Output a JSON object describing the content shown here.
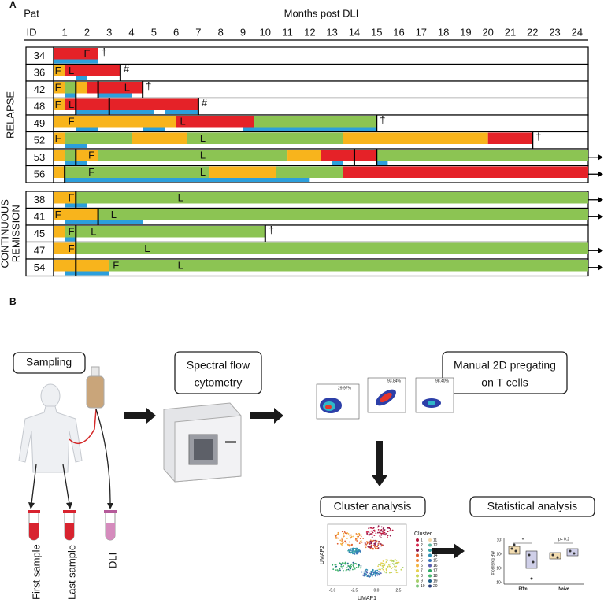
{
  "panel_a": {
    "label": "A",
    "pat": "Pat",
    "id": "ID",
    "axis_title": "Months post DLI",
    "xlim": [
      0.5,
      24.5
    ],
    "xticks": [
      1,
      2,
      3,
      4,
      5,
      6,
      7,
      8,
      9,
      10,
      11,
      12,
      13,
      14,
      15,
      16,
      17,
      18,
      19,
      20,
      21,
      22,
      23,
      24
    ],
    "colors": {
      "orange": "#f8b41c",
      "green": "#8cc453",
      "red": "#e52228"
    },
    "sample_color": "#2c9fdc",
    "groups": [
      {
        "name": [
          "RELAPSE"
        ],
        "rows": [
          {
            "id": "34",
            "segments": [
              [
                0.5,
                2.5,
                "red"
              ]
            ],
            "samples": [
              [
                0.5,
                2.5
              ]
            ],
            "lines": [],
            "labels": [
              {
                "text": "F",
                "at": 2
              }
            ],
            "end": "†"
          },
          {
            "id": "36",
            "segments": [
              [
                0.5,
                1,
                "orange"
              ],
              [
                1,
                3.5,
                "red"
              ]
            ],
            "samples": [
              [
                1.5,
                2
              ]
            ],
            "lines": [
              3.5
            ],
            "labels": [
              {
                "text": "F",
                "at": 0.7
              },
              {
                "text": "L",
                "at": 1.3
              }
            ],
            "end": "#"
          },
          {
            "id": "42",
            "segments": [
              [
                0.5,
                1,
                "orange"
              ],
              [
                1,
                1.5,
                "green"
              ],
              [
                1.5,
                2,
                "orange"
              ],
              [
                2,
                4.5,
                "red"
              ]
            ],
            "samples": [
              [
                1,
                1.5
              ],
              [
                2.5,
                4
              ]
            ],
            "lines": [
              1.5,
              2.5,
              4.5
            ],
            "labels": [
              {
                "text": "F",
                "at": 0.7
              },
              {
                "text": "L",
                "at": 3.8
              }
            ],
            "end": "†"
          },
          {
            "id": "48",
            "segments": [
              [
                0.5,
                1,
                "orange"
              ],
              [
                1,
                7,
                "red"
              ]
            ],
            "samples": [
              [
                1.5,
                5
              ],
              [
                5.5,
                7
              ]
            ],
            "lines": [
              1.5,
              3,
              7
            ],
            "labels": [
              {
                "text": "F",
                "at": 0.7
              },
              {
                "text": "L",
                "at": 1.3
              }
            ],
            "end": "#"
          },
          {
            "id": "49",
            "segments": [
              [
                0.5,
                6,
                "orange"
              ],
              [
                6,
                9.5,
                "red"
              ],
              [
                9.5,
                15,
                "green"
              ]
            ],
            "samples": [
              [
                1.5,
                2.5
              ],
              [
                4.5,
                5.5
              ],
              [
                9,
                15
              ]
            ],
            "lines": [
              15
            ],
            "labels": [
              {
                "text": "F",
                "at": 1.3
              },
              {
                "text": "L",
                "at": 6.3
              }
            ],
            "end": "†"
          },
          {
            "id": "52",
            "segments": [
              [
                0.5,
                1,
                "orange"
              ],
              [
                1,
                4,
                "green"
              ],
              [
                4,
                6.5,
                "orange"
              ],
              [
                6.5,
                13.5,
                "green"
              ],
              [
                13.5,
                20,
                "orange"
              ],
              [
                20,
                22,
                "red"
              ]
            ],
            "samples": [
              [
                1,
                2
              ]
            ],
            "lines": [
              22
            ],
            "labels": [
              {
                "text": "F",
                "at": 0.7
              },
              {
                "text": "L",
                "at": 7.2
              }
            ],
            "end": "†"
          },
          {
            "id": "53",
            "segments": [
              [
                0.5,
                1,
                "orange"
              ],
              [
                1,
                1.5,
                "green"
              ],
              [
                1.5,
                2.5,
                "orange"
              ],
              [
                2.5,
                11,
                "green"
              ],
              [
                11,
                12.5,
                "orange"
              ],
              [
                12.5,
                15,
                "red"
              ],
              [
                15,
                24.5,
                "green"
              ]
            ],
            "samples": [
              [
                1,
                2
              ],
              [
                13,
                13.5
              ],
              [
                15,
                15.5
              ]
            ],
            "lines": [
              1.5,
              14,
              15
            ],
            "labels": [
              {
                "text": "F",
                "at": 2.2
              },
              {
                "text": "L",
                "at": 7.2
              }
            ],
            "arrow": true
          },
          {
            "id": "56",
            "segments": [
              [
                0.5,
                1,
                "orange"
              ],
              [
                1,
                7.5,
                "green"
              ],
              [
                7.5,
                10.5,
                "orange"
              ],
              [
                10.5,
                13.5,
                "green"
              ],
              [
                13.5,
                24.5,
                "red"
              ]
            ],
            "samples": [
              [
                1,
                12
              ]
            ],
            "lines": [
              1
            ],
            "labels": [
              {
                "text": "F",
                "at": 2.2
              },
              {
                "text": "L",
                "at": 7.2
              }
            ],
            "arrow": true
          }
        ]
      },
      {
        "name": [
          "CONTINUOUS",
          "REMISSION"
        ],
        "rows": [
          {
            "id": "38",
            "segments": [
              [
                0.5,
                1.5,
                "orange"
              ],
              [
                1.5,
                24.5,
                "green"
              ]
            ],
            "samples": [
              [
                1,
                2
              ]
            ],
            "lines": [
              1.5
            ],
            "labels": [
              {
                "text": "F",
                "at": 1.3
              },
              {
                "text": "L",
                "at": 6.2
              }
            ],
            "arrow": true
          },
          {
            "id": "41",
            "segments": [
              [
                0.5,
                2.5,
                "orange"
              ],
              [
                2.5,
                24.5,
                "green"
              ]
            ],
            "samples": [
              [
                1,
                4.5
              ]
            ],
            "lines": [
              2.5
            ],
            "labels": [
              {
                "text": "F",
                "at": 0.7
              },
              {
                "text": "L",
                "at": 3.2
              }
            ],
            "arrow": true
          },
          {
            "id": "45",
            "segments": [
              [
                0.5,
                1,
                "orange"
              ],
              [
                1,
                10,
                "green"
              ]
            ],
            "samples": [
              [
                1,
                1.5
              ]
            ],
            "lines": [
              1.5,
              10
            ],
            "labels": [
              {
                "text": "F",
                "at": 1.3
              },
              {
                "text": "L",
                "at": 2.3
              }
            ],
            "end": "†"
          },
          {
            "id": "47",
            "segments": [
              [
                0.5,
                1.5,
                "orange"
              ],
              [
                1.5,
                24.5,
                "green"
              ]
            ],
            "samples": [],
            "lines": [
              1.5
            ],
            "labels": [
              {
                "text": "F",
                "at": 1.3
              },
              {
                "text": "L",
                "at": 4.7
              }
            ],
            "arrow": true
          },
          {
            "id": "54",
            "segments": [
              [
                0.5,
                3,
                "orange"
              ],
              [
                3,
                24.5,
                "green"
              ]
            ],
            "samples": [
              [
                1,
                3
              ]
            ],
            "lines": [
              1.5
            ],
            "labels": [
              {
                "text": "F",
                "at": 3.3
              },
              {
                "text": "L",
                "at": 6.2
              }
            ],
            "arrow": true
          }
        ]
      }
    ]
  },
  "panel_b": {
    "label": "B",
    "sampling": "Sampling",
    "cytometry": [
      "Spectral flow",
      "cytometry"
    ],
    "pregating": [
      "Manual 2D pregating",
      "on T cells"
    ],
    "cluster": "Cluster analysis",
    "statistics": "Statistical analysis",
    "tubes": [
      "First sample",
      "Last sample",
      "DLI"
    ],
    "gates": [
      "29.97%",
      "93.84%",
      "98.40%"
    ],
    "umap": {
      "x_label": "UMAP1",
      "y_label": "UMAP2",
      "xticks": [
        "-5.0",
        "-2.5",
        "0.0",
        "2.5"
      ],
      "legend_title": "Cluster",
      "clusters": [
        "1",
        "2",
        "3",
        "4",
        "5",
        "6",
        "7",
        "8",
        "9",
        "10",
        "11",
        "12",
        "13",
        "14",
        "15",
        "16",
        "17",
        "18",
        "19",
        "20"
      ],
      "colors": [
        "#b5163c",
        "#d8284f",
        "#8e1b4e",
        "#e05a2a",
        "#f08a3c",
        "#f4b642",
        "#e8d04c",
        "#c9d65a",
        "#a6cf6b",
        "#7cc47b",
        "#f6d9a8",
        "#5fb8a2",
        "#3aa6a8",
        "#2c8fb2",
        "#3a76b8",
        "#5a5fb0",
        "#2fa865",
        "#48b86f",
        "#1e5f8a",
        "#2b3f7a"
      ]
    },
    "stats": {
      "y_label": "# cells/kg BW",
      "yticks": [
        "10⁷",
        "10⁶",
        "10⁵",
        "10⁴"
      ],
      "groups": [
        "Effm",
        "Naive"
      ],
      "p_left": "*",
      "p_right": "p= 0.2"
    }
  }
}
